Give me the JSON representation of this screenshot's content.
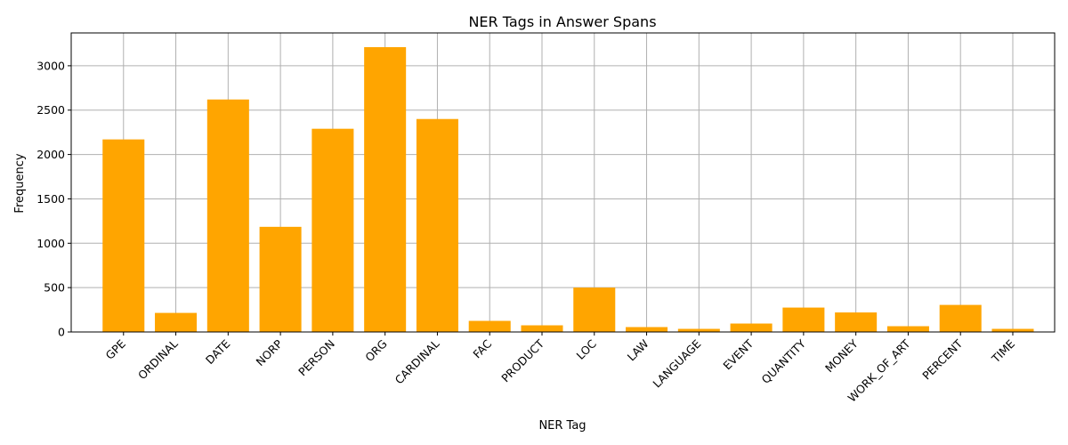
{
  "chart_data": {
    "type": "bar",
    "title": "NER Tags in Answer Spans",
    "xlabel": "NER Tag",
    "ylabel": "Frequency",
    "categories": [
      "GPE",
      "ORDINAL",
      "DATE",
      "NORP",
      "PERSON",
      "ORG",
      "CARDINAL",
      "FAC",
      "PRODUCT",
      "LOC",
      "LAW",
      "LANGUAGE",
      "EVENT",
      "QUANTITY",
      "MONEY",
      "WORK_OF_ART",
      "PERCENT",
      "TIME"
    ],
    "values": [
      2170,
      215,
      2620,
      1185,
      2290,
      3210,
      2400,
      125,
      75,
      500,
      55,
      35,
      95,
      275,
      220,
      65,
      305,
      35
    ],
    "ylim": [
      0,
      3370
    ],
    "yticks": [
      0,
      500,
      1000,
      1500,
      2000,
      2500,
      3000
    ],
    "grid": true,
    "bar_color": "#ffa500"
  }
}
